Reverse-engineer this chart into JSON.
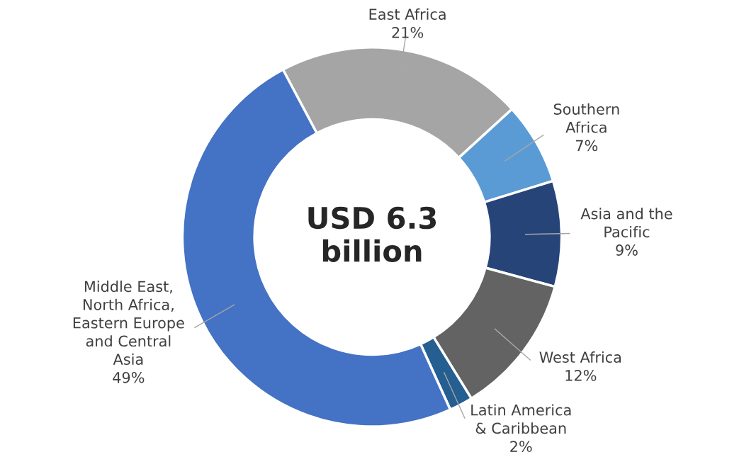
{
  "chart_data": {
    "type": "donut",
    "categories": [
      "East Africa",
      "Southern Africa",
      "Asia and the Pacific",
      "West Africa",
      "Latin America & Caribbean",
      "Middle East, North Africa, Eastern Europe and Central Asia"
    ],
    "values": [
      21,
      7,
      9,
      12,
      2,
      49
    ],
    "colors": [
      "#a5a5a5",
      "#5b9bd5",
      "#264478",
      "#636363",
      "#255e91",
      "#4472c4"
    ],
    "value_labels": [
      "21%",
      "7%",
      "9%",
      "12%",
      "2%",
      "49%"
    ],
    "annotations": [
      "USD 6.3 billion"
    ]
  }
}
